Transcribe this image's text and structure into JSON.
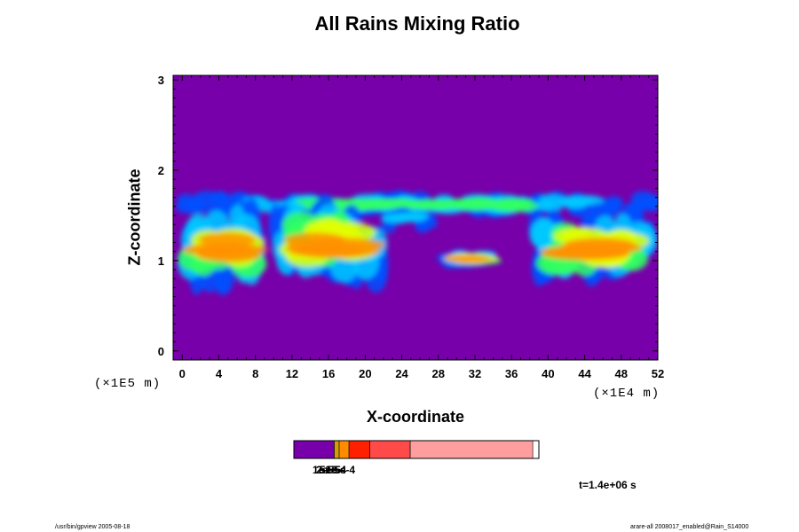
{
  "chart_data": {
    "type": "heatmap",
    "title": "All Rains Mixing Ratio",
    "xlabel": "X-coordinate",
    "ylabel": "Z-coordinate",
    "x_unit_label": "(×1E4 m)",
    "y_unit_label": "(×1E5 m)",
    "x_ticks": [
      0,
      4,
      8,
      12,
      16,
      20,
      24,
      28,
      32,
      36,
      40,
      44,
      48,
      52
    ],
    "y_ticks": [
      0,
      1,
      2,
      3
    ],
    "xlim": [
      -1,
      52
    ],
    "ylim": [
      -0.1,
      3.05
    ],
    "background_color": "#7700aa",
    "cloud_bands": [
      {
        "x_start": 0,
        "x_end": 52,
        "z_center": 1.62,
        "z_half_width": 0.09,
        "intensity": 0.55
      },
      {
        "x_start": 0,
        "x_end": 9,
        "z_center": 1.15,
        "z_half_width": 0.35,
        "intensity": 0.8
      },
      {
        "x_start": 10,
        "x_end": 22,
        "z_center": 1.2,
        "z_half_width": 0.35,
        "intensity": 0.85
      },
      {
        "x_start": 22,
        "x_end": 27,
        "z_center": 1.45,
        "z_half_width": 0.08,
        "intensity": 0.3
      },
      {
        "x_start": 29,
        "x_end": 34,
        "z_center": 1.02,
        "z_half_width": 0.06,
        "intensity": 0.9
      },
      {
        "x_start": 38,
        "x_end": 52,
        "z_center": 1.15,
        "z_half_width": 0.3,
        "intensity": 0.8
      }
    ],
    "colorbar": {
      "colors": [
        "#7700aa",
        "#d4a000",
        "#ff8c00",
        "#ff2000",
        "#ff4a4a",
        "#ff9e9e"
      ],
      "widths": [
        0.165,
        0.02,
        0.04,
        0.085,
        0.165,
        0.5
      ],
      "labels": [
        "1e-5",
        "2e-5",
        "5e-5",
        "1e-4",
        "5e-4"
      ]
    },
    "time_label": "t=1.4e+06 s"
  },
  "footer": {
    "left": "/usr/bin/gpview 2005-08-18",
    "right": "arare-all 2008017_enabled@Rain_S14000"
  }
}
